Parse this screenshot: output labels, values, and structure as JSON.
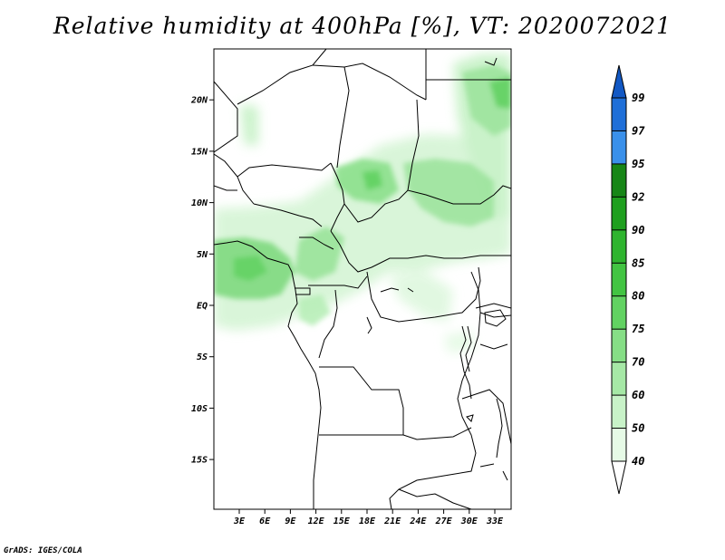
{
  "title": "Relative humidity at 400hPa [%], VT: 2020072021",
  "footer": "GrADS: IGES/COLA",
  "map": {
    "lat_labels": [
      "20N",
      "15N",
      "10N",
      "5N",
      "EQ",
      "5S",
      "10S",
      "15S"
    ],
    "lat_values": [
      20,
      15,
      10,
      5,
      0,
      -5,
      -10,
      -15
    ],
    "lon_labels": [
      "3E",
      "6E",
      "9E",
      "12E",
      "15E",
      "18E",
      "21E",
      "24E",
      "27E",
      "30E",
      "33E"
    ],
    "lon_values": [
      3,
      6,
      9,
      12,
      15,
      18,
      21,
      24,
      27,
      30,
      33
    ]
  },
  "colorbar": {
    "labels": [
      "40",
      "50",
      "60",
      "70",
      "75",
      "80",
      "85",
      "90",
      "92",
      "95",
      "97",
      "99"
    ],
    "colors": [
      "#ffffff",
      "#e6fae6",
      "#c8f2c8",
      "#a6e8a6",
      "#86de86",
      "#62d262",
      "#42c442",
      "#2fb42f",
      "#1f9f1f",
      "#178617",
      "#3a90ea",
      "#1f6fd8",
      "#1258c4"
    ]
  }
}
